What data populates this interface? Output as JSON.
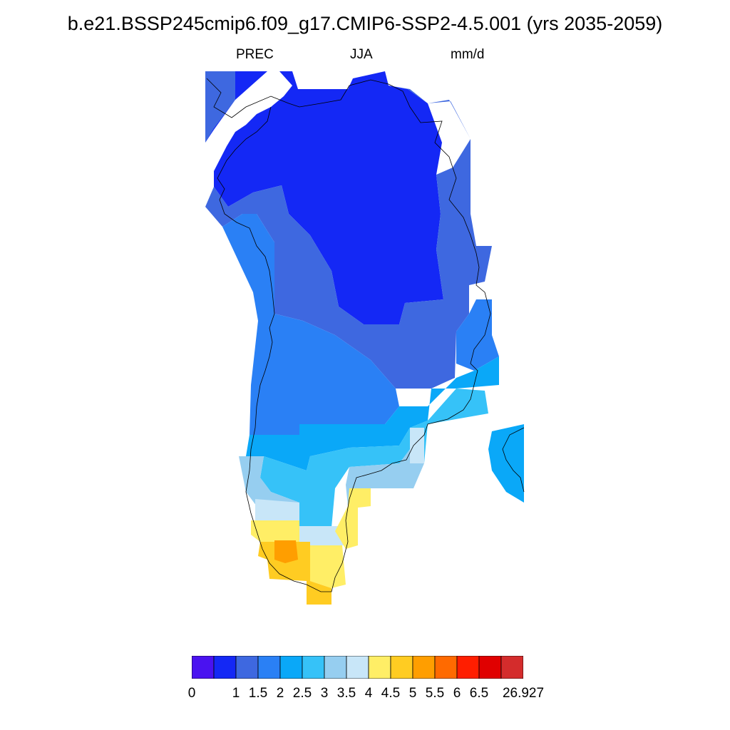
{
  "header": {
    "title": "b.e21.BSSP245cmip6.f09_g17.CMIP6-SSP2-4.5.001 (yrs 2035-2059)",
    "variable": "PREC",
    "season": "JJA",
    "units": "mm/d"
  },
  "colorbar": {
    "colors": [
      "#4a12f0",
      "#1428f5",
      "#3e68e0",
      "#2a80f5",
      "#0aa8f8",
      "#36c2f8",
      "#96cef0",
      "#c8e6f8",
      "#ffee66",
      "#ffcc22",
      "#ff9e00",
      "#ff6a00",
      "#ff1e00",
      "#e00000",
      "#d42c2c"
    ],
    "labels": [
      "0",
      "",
      "1",
      "1.5",
      "2",
      "2.5",
      "3",
      "3.5",
      "4",
      "4.5",
      "5",
      "5.5",
      "6",
      "6.5",
      "26.927"
    ]
  },
  "map_data": {
    "region": "Greenland",
    "fill_colors": {
      "lt1": "#1428f5",
      "1to1.5": "#3e68e0",
      "1.5to2": "#2a80f5",
      "2to2.5": "#0aa8f8",
      "2.5to3": "#36c2f8",
      "3to3.5": "#96cef0",
      "3.5to4": "#c8e6f8",
      "4to4.5": "#ffee66",
      "4.5to5": "#ffcc22",
      "5to5.5": "#ff9e00"
    }
  }
}
